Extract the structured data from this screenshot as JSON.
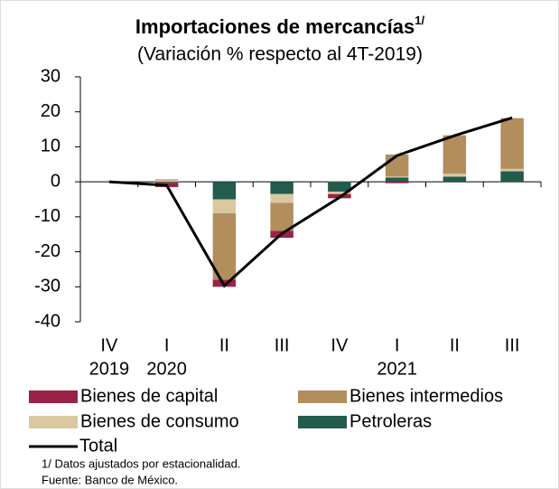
{
  "chart_data": {
    "type": "stacked_bar_line",
    "title": "Importaciones de mercancías",
    "title_note": "1/",
    "subtitle": "(Variación % respecto al 4T-2019)",
    "categories": [
      "IV",
      "I",
      "II",
      "III",
      "IV",
      "I",
      "II",
      "III"
    ],
    "years": [
      "2019",
      "2020",
      null,
      null,
      null,
      "2021",
      null,
      null
    ],
    "series": [
      {
        "name": "Bienes de capital",
        "color": "#9b2247",
        "values": [
          0,
          -1.2,
          -2,
          -2,
          -1.2,
          -0.4,
          0,
          0
        ]
      },
      {
        "name": "Bienes intermedios",
        "color": "#b38e5d",
        "values": [
          0,
          0.3,
          -19,
          -8,
          0.2,
          6.3,
          11,
          14.5
        ]
      },
      {
        "name": "Bienes de consumo",
        "color": "#d9c8a0",
        "values": [
          0,
          0.4,
          -4,
          -2.5,
          -0.7,
          0.3,
          0.8,
          0.7
        ]
      },
      {
        "name": "Petroleras",
        "color": "#235b4e",
        "values": [
          0,
          -0.3,
          -5,
          -3.5,
          -2.8,
          1.2,
          1.5,
          3
        ]
      }
    ],
    "line": {
      "name": "Total",
      "color": "#000000",
      "values": [
        0,
        -1,
        -29.7,
        -14.8,
        -4.5,
        7.5,
        13.2,
        18.3
      ]
    },
    "ylim": [
      -40,
      30
    ],
    "yticks": [
      -40,
      -30,
      -20,
      -10,
      0,
      10,
      20,
      30
    ],
    "notes": [
      "1/ Datos ajustados por estacionalidad.",
      "Fuente: Banco de México."
    ]
  }
}
